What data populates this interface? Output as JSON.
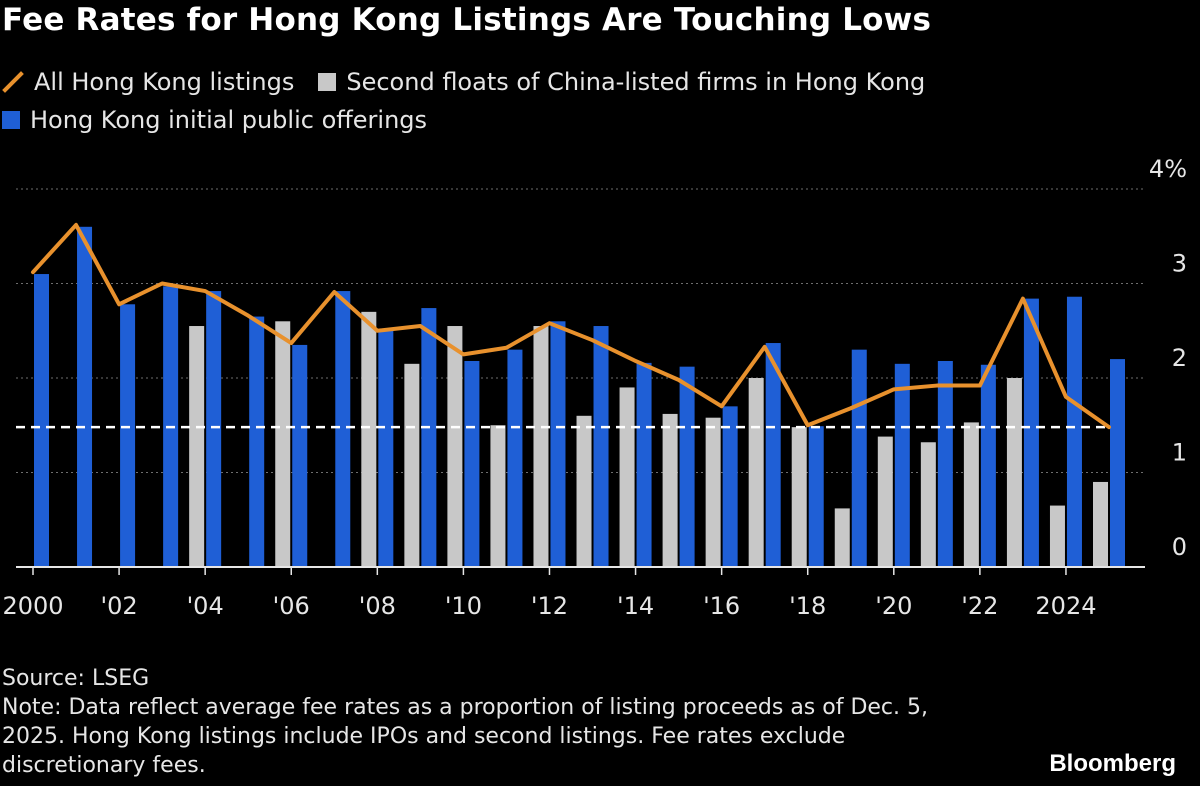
{
  "title": "Fee Rates for Hong Kong Listings Are Touching Lows",
  "legend": [
    {
      "label": "All Hong Kong listings",
      "kind": "line",
      "color": "#e8912d"
    },
    {
      "label": "Second floats of China-listed firms in Hong Kong",
      "kind": "box",
      "color": "#c8c8c8"
    },
    {
      "label": "Hong Kong initial public offerings",
      "kind": "box",
      "color": "#1f5fd6"
    }
  ],
  "chart_data": {
    "type": "bar+line",
    "title": "Fee Rates for Hong Kong Listings Are Touching Lows",
    "x": [
      2000,
      2001,
      2002,
      2003,
      2004,
      2005,
      2006,
      2007,
      2008,
      2009,
      2010,
      2011,
      2012,
      2013,
      2014,
      2015,
      2016,
      2017,
      2018,
      2019,
      2020,
      2021,
      2022,
      2023,
      2024,
      2025
    ],
    "x_tick_labels": [
      {
        "year": 2000,
        "label": "2000"
      },
      {
        "year": 2002,
        "label": "'02"
      },
      {
        "year": 2004,
        "label": "'04"
      },
      {
        "year": 2006,
        "label": "'06"
      },
      {
        "year": 2008,
        "label": "'08"
      },
      {
        "year": 2010,
        "label": "'10"
      },
      {
        "year": 2012,
        "label": "'12"
      },
      {
        "year": 2014,
        "label": "'14"
      },
      {
        "year": 2016,
        "label": "'16"
      },
      {
        "year": 2018,
        "label": "'18"
      },
      {
        "year": 2020,
        "label": "'20"
      },
      {
        "year": 2022,
        "label": "'22"
      },
      {
        "year": 2024,
        "label": "2024"
      }
    ],
    "y_ticks": [
      {
        "value": 4,
        "label": "4%"
      },
      {
        "value": 3,
        "label": "3"
      },
      {
        "value": 2,
        "label": "2"
      },
      {
        "value": 1,
        "label": "1"
      },
      {
        "value": 0,
        "label": "0"
      }
    ],
    "ylim": [
      0,
      4
    ],
    "series": [
      {
        "name": "Second floats of China-listed firms in Hong Kong",
        "type": "bar",
        "color": "#c8c8c8",
        "values": [
          0,
          0,
          0,
          0,
          2.55,
          0,
          2.6,
          0,
          2.7,
          2.15,
          2.55,
          1.5,
          2.55,
          1.6,
          1.9,
          1.62,
          1.58,
          2.0,
          1.48,
          0.62,
          1.38,
          1.32,
          1.53,
          2.0,
          0.65,
          0.9
        ]
      },
      {
        "name": "Hong Kong initial public offerings",
        "type": "bar",
        "color": "#1f5fd6",
        "values": [
          3.1,
          3.6,
          2.78,
          2.97,
          2.92,
          2.65,
          2.35,
          2.92,
          2.5,
          2.74,
          2.18,
          2.3,
          2.6,
          2.55,
          2.16,
          2.12,
          1.7,
          2.37,
          1.49,
          2.3,
          2.15,
          2.18,
          2.14,
          2.84,
          2.86,
          2.2
        ]
      },
      {
        "name": "All Hong Kong listings",
        "type": "line",
        "color": "#e8912d",
        "values": [
          3.12,
          3.62,
          2.78,
          3.0,
          2.92,
          2.66,
          2.37,
          2.91,
          2.5,
          2.55,
          2.25,
          2.32,
          2.58,
          2.4,
          2.18,
          1.98,
          1.7,
          2.33,
          1.5,
          1.68,
          1.88,
          1.92,
          1.92,
          2.84,
          1.8,
          1.48
        ]
      }
    ],
    "reference_line": {
      "value": 1.48,
      "style": "dashed",
      "color": "#ffffff"
    }
  },
  "footer": {
    "source": "Source: LSEG",
    "note": "Note: Data reflect average fee rates as a proportion of listing proceeds as of Dec. 5, 2025. Hong Kong listings include IPOs and second listings. Fee rates exclude discretionary fees."
  },
  "brand": "Bloomberg"
}
